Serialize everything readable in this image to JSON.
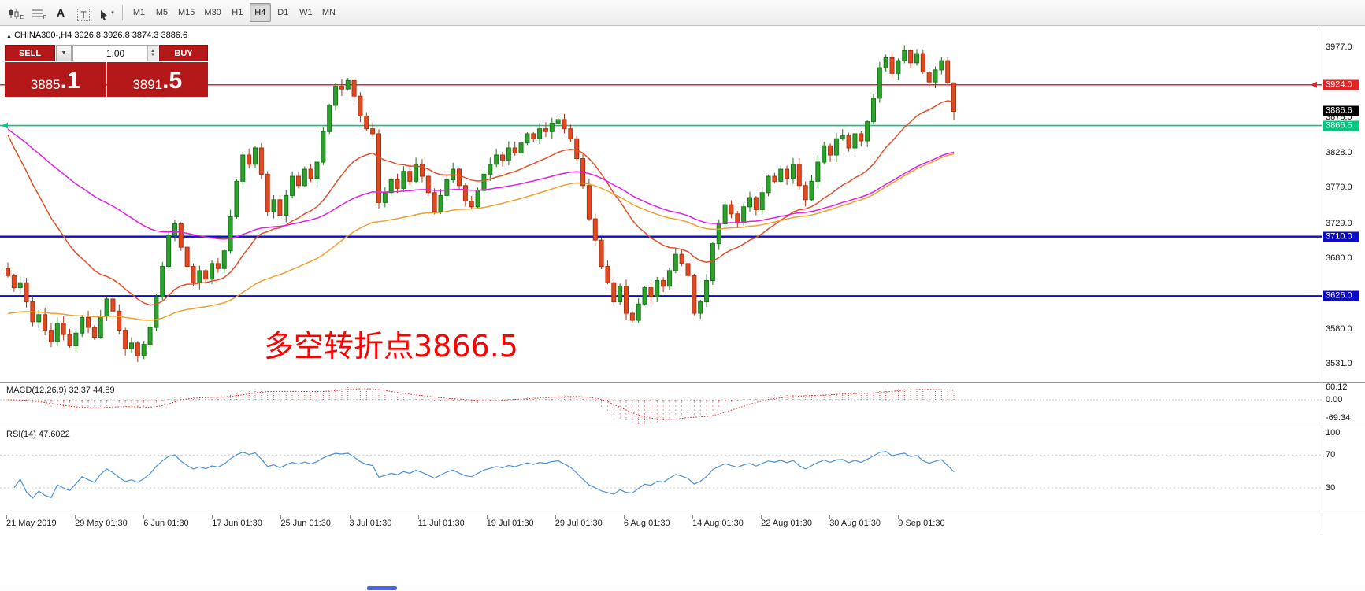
{
  "toolbar": {
    "timeframes": [
      "M1",
      "M5",
      "M15",
      "M30",
      "H1",
      "H4",
      "D1",
      "W1",
      "MN"
    ],
    "active_timeframe": "H4",
    "icon_sub_labels": {
      "first": "E",
      "second": "F"
    },
    "text_tool_label": "A",
    "textbox_tool_label": "T"
  },
  "symbol_bar": {
    "text": "CHINA300-,H4  3926.8 3926.8 3874.3 3886.6"
  },
  "trade_panel": {
    "sell_label": "SELL",
    "buy_label": "BUY",
    "volume": "1.00",
    "sell_price_main": "3885",
    "sell_price_frac": ".1",
    "buy_price_main": "3891",
    "buy_price_frac": ".5"
  },
  "annotation": {
    "text": "多空转折点3866.5",
    "color": "#ff0000"
  },
  "macd": {
    "label": "MACD(12,26,9)",
    "values": "32.37 44.89",
    "axis": [
      "60.12",
      "0.00",
      "-69.34"
    ]
  },
  "rsi": {
    "label": "RSI(14)",
    "value": "47.6022",
    "axis": [
      "100",
      "70",
      "30"
    ]
  },
  "time_axis": [
    "21 May 2019",
    "29 May 01:30",
    "6 Jun 01:30",
    "17 Jun 01:30",
    "25 Jun 01:30",
    "3 Jul 01:30",
    "11 Jul 01:30",
    "19 Jul 01:30",
    "29 Jul 01:30",
    "6 Aug 01:30",
    "14 Aug 01:30",
    "22 Aug 01:30",
    "30 Aug 01:30",
    "9 Sep 01:30"
  ],
  "price_axis": {
    "grid": [
      [
        "3977.0",
        3977
      ],
      [
        "3878.0",
        3878
      ],
      [
        "3828.0",
        3828
      ],
      [
        "3779.0",
        3779
      ],
      [
        "3729.0",
        3729
      ],
      [
        "3680.0",
        3680
      ],
      [
        "3580.0",
        3580
      ],
      [
        "3531.0",
        3531
      ]
    ],
    "badges": [
      [
        "3924.0",
        3924,
        "#e32424"
      ],
      [
        "3886.6",
        3886.6,
        "#000000"
      ],
      [
        "3866.5",
        3866.5,
        "#00c87e"
      ],
      [
        "3710.0",
        3710,
        "#0a0ac8"
      ],
      [
        "3626.0",
        3626,
        "#0a0ac8"
      ]
    ]
  },
  "colors": {
    "candle_up": "#2ca12c",
    "candle_up_stroke": "#177517",
    "candle_down": "#e2491f",
    "candle_down_stroke": "#b03010",
    "macd_hist": "#c05050",
    "macd_signal": "#e02020",
    "rsi_line": "#4a90d9",
    "grid_dotted": "#c8c8c8"
  },
  "chart_data": {
    "type": "candlestick",
    "symbol": "CHINA300-",
    "timeframe": "H4",
    "title": "CHINA300-,H4",
    "ohlc_current": {
      "open": 3926.8,
      "high": 3926.8,
      "low": 3874.3,
      "close": 3886.6
    },
    "price_top": 3977,
    "price_bottom": 3531,
    "closes": [
      3655,
      3638,
      3645,
      3618,
      3590,
      3600,
      3578,
      3562,
      3588,
      3572,
      3556,
      3574,
      3596,
      3582,
      3568,
      3598,
      3622,
      3605,
      3578,
      3552,
      3560,
      3542,
      3558,
      3582,
      3625,
      3668,
      3712,
      3728,
      3695,
      3668,
      3645,
      3662,
      3650,
      3672,
      3665,
      3690,
      3738,
      3788,
      3825,
      3812,
      3835,
      3798,
      3745,
      3762,
      3740,
      3768,
      3795,
      3782,
      3805,
      3792,
      3815,
      3858,
      3895,
      3922,
      3918,
      3930,
      3908,
      3880,
      3862,
      3855,
      3758,
      3772,
      3790,
      3778,
      3802,
      3788,
      3812,
      3795,
      3772,
      3745,
      3768,
      3790,
      3805,
      3782,
      3760,
      3752,
      3775,
      3798,
      3812,
      3825,
      3818,
      3835,
      3828,
      3842,
      3855,
      3848,
      3862,
      3858,
      3870,
      3875,
      3862,
      3848,
      3820,
      3782,
      3735,
      3705,
      3668,
      3645,
      3618,
      3640,
      3602,
      3592,
      3615,
      3638,
      3625,
      3648,
      3640,
      3662,
      3685,
      3672,
      3655,
      3602,
      3618,
      3648,
      3700,
      3728,
      3755,
      3742,
      3730,
      3752,
      3765,
      3748,
      3772,
      3795,
      3788,
      3805,
      3792,
      3812,
      3782,
      3762,
      3788,
      3815,
      3838,
      3825,
      3848,
      3852,
      3835,
      3855,
      3845,
      3872,
      3905,
      3948,
      3962,
      3940,
      3958,
      3972,
      3955,
      3968,
      3942,
      3928,
      3945,
      3958,
      3926.8,
      3886.6
    ],
    "last_candle": {
      "open": 3926.8,
      "high": 3926.8,
      "low": 3874.3,
      "close": 3886.6
    },
    "levels": [
      {
        "price": 3924.0,
        "color": "#e32424",
        "width": 1.5,
        "marker": "right"
      },
      {
        "price": 3866.5,
        "color": "#00c87e",
        "width": 1.6,
        "marker": "left"
      },
      {
        "price": 3710.0,
        "color": "#0a0ac8",
        "width": 2.4,
        "marker": "none"
      },
      {
        "price": 3626.0,
        "color": "#0a0ac8",
        "width": 2.4,
        "marker": "none"
      }
    ],
    "ma": [
      {
        "name": "ma-fast-red",
        "color": "#e0502a",
        "alpha": 0.085,
        "seed": 3872
      },
      {
        "name": "ma-mid-magenta",
        "color": "#e020e0",
        "alpha": 0.03,
        "seed": 3868
      },
      {
        "name": "ma-slow-orange",
        "color": "#f0a030",
        "alpha": 0.03,
        "seed": 3600
      }
    ],
    "indicators": [
      {
        "name": "MACD",
        "params": "12,26,9",
        "current": [
          32.37,
          44.89
        ],
        "scale": [
          60.12,
          0.0,
          -69.34
        ]
      },
      {
        "name": "RSI",
        "params": "14",
        "current": 47.6022,
        "scale": [
          100,
          70,
          30
        ]
      }
    ]
  }
}
